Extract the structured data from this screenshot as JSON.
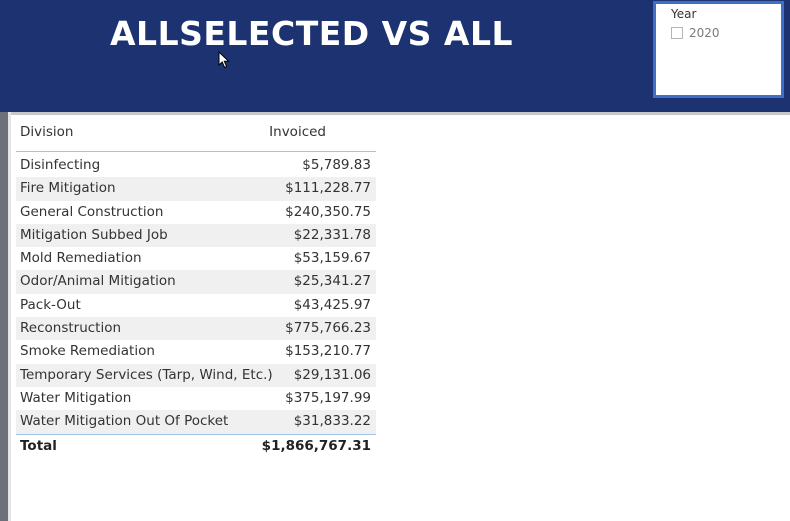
{
  "banner": {
    "title": "ALLSELECTED VS ALL"
  },
  "slicer": {
    "header": "Year",
    "items": [
      {
        "label": "2020",
        "checked": false
      }
    ]
  },
  "table": {
    "columns": {
      "division": "Division",
      "invoiced": "Invoiced"
    },
    "rows": [
      {
        "division": "Disinfecting",
        "invoiced": "$5,789.83"
      },
      {
        "division": "Fire Mitigation",
        "invoiced": "$111,228.77"
      },
      {
        "division": "General Construction",
        "invoiced": "$240,350.75"
      },
      {
        "division": "Mitigation Subbed Job",
        "invoiced": "$22,331.78"
      },
      {
        "division": "Mold Remediation",
        "invoiced": "$53,159.67"
      },
      {
        "division": "Odor/Animal Mitigation",
        "invoiced": "$25,341.27"
      },
      {
        "division": "Pack-Out",
        "invoiced": "$43,425.97"
      },
      {
        "division": "Reconstruction",
        "invoiced": "$775,766.23"
      },
      {
        "division": "Smoke Remediation",
        "invoiced": "$153,210.77"
      },
      {
        "division": "Temporary Services (Tarp, Wind, Etc.)",
        "invoiced": "$29,131.06"
      },
      {
        "division": "Water Mitigation",
        "invoiced": "$375,197.99"
      },
      {
        "division": "Water Mitigation Out Of Pocket",
        "invoiced": "$31,833.22"
      }
    ],
    "total": {
      "label": "Total",
      "invoiced": "$1,866,767.31"
    }
  },
  "colors": {
    "banner": "#1d3270",
    "slicer_border": "#3f6fc9",
    "row_shade": "#f0f0f0",
    "divider": "#9dc3e6"
  },
  "icons": {
    "cursor": "mouse-pointer-icon",
    "checkbox": "checkbox-icon"
  }
}
